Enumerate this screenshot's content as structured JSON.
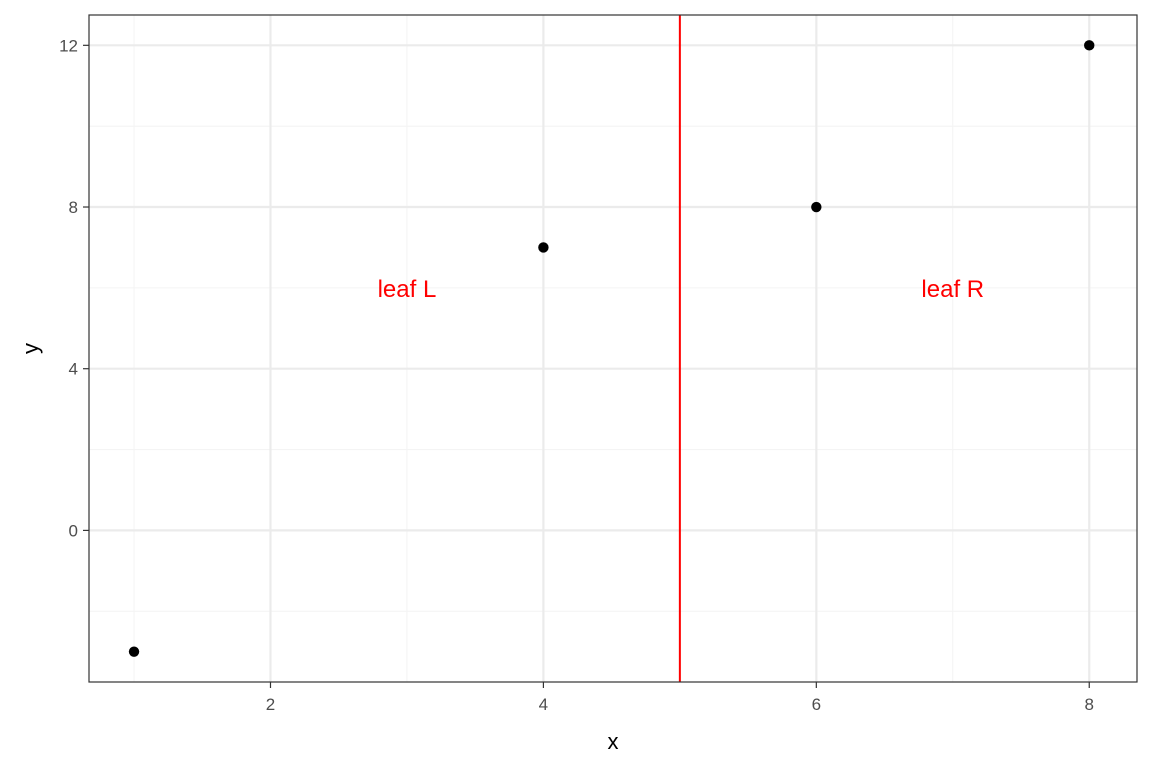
{
  "chart_data": {
    "type": "scatter",
    "title": "",
    "xlabel": "x",
    "ylabel": "y",
    "xlim": [
      0.67,
      8.35
    ],
    "ylim": [
      -3.75,
      12.75
    ],
    "xticks": [
      2,
      4,
      6,
      8
    ],
    "xtick_labels": [
      "2",
      "4",
      "6",
      "8"
    ],
    "yticks": [
      0,
      4,
      8,
      12
    ],
    "ytick_labels": [
      "0",
      "4",
      "8",
      "12"
    ],
    "x_minor_grid": [
      1,
      3,
      5,
      7
    ],
    "y_minor_grid": [
      -2,
      2,
      6,
      10
    ],
    "grid": true,
    "points": [
      {
        "x": 1,
        "y": -3
      },
      {
        "x": 4,
        "y": 7
      },
      {
        "x": 6,
        "y": 8
      },
      {
        "x": 8,
        "y": 12
      }
    ],
    "vline": {
      "x": 5,
      "color": "#ff0000"
    },
    "annotations": [
      {
        "text": "leaf L",
        "x": 3,
        "y": 6,
        "color": "#ff0000"
      },
      {
        "text": "leaf R",
        "x": 7,
        "y": 6,
        "color": "#ff0000"
      }
    ],
    "colors": {
      "point": "#000000",
      "grid_major": "#ebebeb",
      "grid_minor": "#f4f4f4",
      "panel_border": "#333333",
      "tick_text": "#4d4d4d"
    }
  }
}
